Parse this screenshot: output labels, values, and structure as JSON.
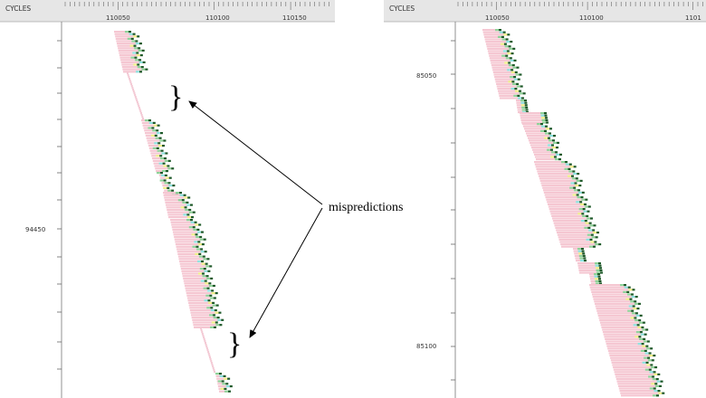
{
  "panels": {
    "left": {
      "header_label": "CYCLES",
      "x_ticks": [
        "110050",
        "110100",
        "110150"
      ],
      "y_tick_label": "94450"
    },
    "right": {
      "header_label": "CYCLES",
      "x_ticks": [
        "110050",
        "110100",
        "1101"
      ],
      "y_tick_labels": [
        "85050",
        "85100"
      ]
    }
  },
  "annotation": {
    "label": "mispredictions",
    "brace_glyph": "}"
  },
  "colors": {
    "bar_pink": "#f5c7d2",
    "bar_green": "#8fd39a",
    "bar_yellow": "#f0f08a",
    "bar_cyan": "#8fe3e0",
    "bar_dark": "#1f5a2a",
    "header_bg": "#e6e6e6",
    "axis": "#555555"
  }
}
